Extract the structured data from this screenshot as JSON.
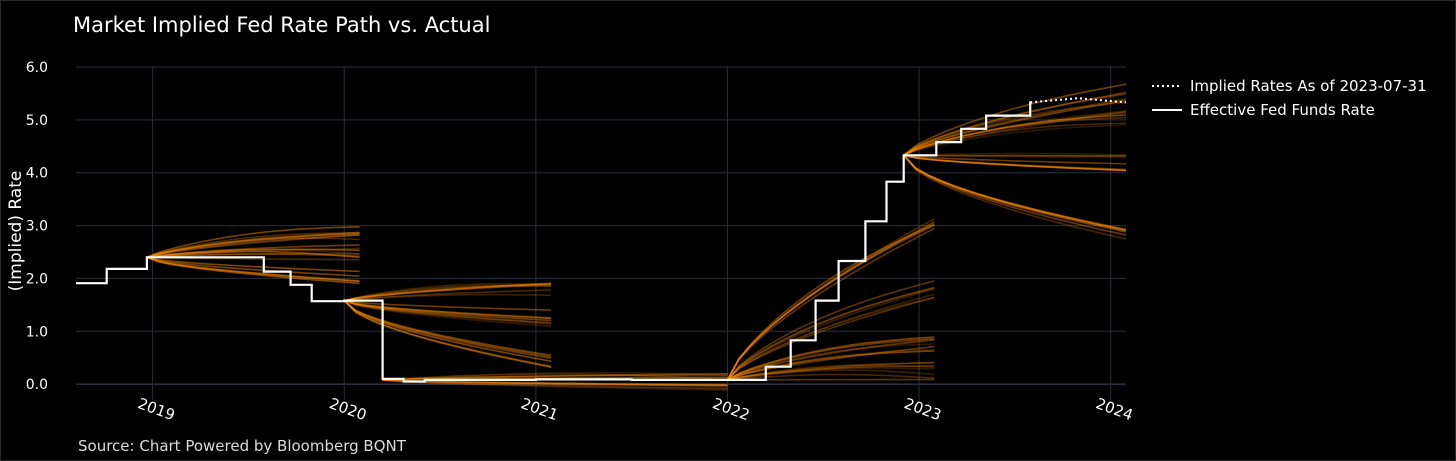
{
  "chart_data": {
    "type": "line",
    "title": "Market Implied Fed Rate Path vs. Actual",
    "ylabel": "(Implied) Rate",
    "xlabel": "",
    "source": "Source: Chart Powered by Bloomberg BQNT",
    "xlim": [
      2018.6,
      2024.08
    ],
    "ylim": [
      -0.3,
      6.0
    ],
    "y_ticks": [
      "0.0",
      "1.0",
      "2.0",
      "3.0",
      "4.0",
      "5.0",
      "6.0"
    ],
    "x_ticks": [
      "2019",
      "2020",
      "2021",
      "2022",
      "2023",
      "2024"
    ],
    "legend_position": "top-right",
    "colors": {
      "effective": "#ffffff",
      "implied": "#ff8c00",
      "grid": "#2a2f3e",
      "background": "#000000"
    },
    "legend": [
      {
        "label": "Implied Rates As of 2023-07-31",
        "style": "dotted"
      },
      {
        "label": "Effective Fed Funds Rate",
        "style": "solid"
      }
    ],
    "series": [
      {
        "name": "Effective Fed Funds Rate",
        "step": true,
        "points": [
          [
            2018.6,
            1.91
          ],
          [
            2018.76,
            2.18
          ],
          [
            2018.97,
            2.4
          ],
          [
            2019.58,
            2.13
          ],
          [
            2019.72,
            1.88
          ],
          [
            2019.83,
            1.57
          ],
          [
            2020.0,
            1.58
          ],
          [
            2020.2,
            0.1
          ],
          [
            2020.31,
            0.05
          ],
          [
            2020.42,
            0.08
          ],
          [
            2021.0,
            0.09
          ],
          [
            2021.5,
            0.08
          ],
          [
            2022.05,
            0.08
          ],
          [
            2022.2,
            0.33
          ],
          [
            2022.33,
            0.83
          ],
          [
            2022.46,
            1.58
          ],
          [
            2022.58,
            2.33
          ],
          [
            2022.72,
            3.08
          ],
          [
            2022.83,
            3.83
          ],
          [
            2022.92,
            4.33
          ],
          [
            2023.09,
            4.58
          ],
          [
            2023.22,
            4.83
          ],
          [
            2023.35,
            5.08
          ],
          [
            2023.58,
            5.33
          ]
        ]
      },
      {
        "name": "Implied Rates As of 2023-07-31",
        "points": [
          [
            2023.58,
            5.33
          ],
          [
            2023.83,
            5.41
          ],
          [
            2024.08,
            5.33
          ]
        ]
      }
    ],
    "implied_path_groups": [
      {
        "start": 2018.97,
        "end": 2020.08,
        "start_rate": 2.4,
        "end_rates": [
          2.0,
          2.5,
          2.9
        ],
        "count": 24
      },
      {
        "start": 2020.0,
        "end": 2021.08,
        "start_rate": 1.58,
        "end_rates": [
          0.45,
          1.25,
          1.8
        ],
        "count": 24
      },
      {
        "start": 2020.2,
        "end": 2022.0,
        "start_rate": 0.08,
        "end_rates": [
          0.03,
          0.1
        ],
        "count": 12
      },
      {
        "start": 2022.0,
        "end": 2023.08,
        "start_rate": 0.08,
        "end_rates": [
          0.25,
          0.8,
          1.8,
          3.0
        ],
        "count": 30
      },
      {
        "start": 2022.92,
        "end": 2024.08,
        "start_rate": 4.33,
        "end_rates": [
          2.8,
          4.2,
          5.0,
          5.5
        ],
        "count": 30
      }
    ]
  }
}
